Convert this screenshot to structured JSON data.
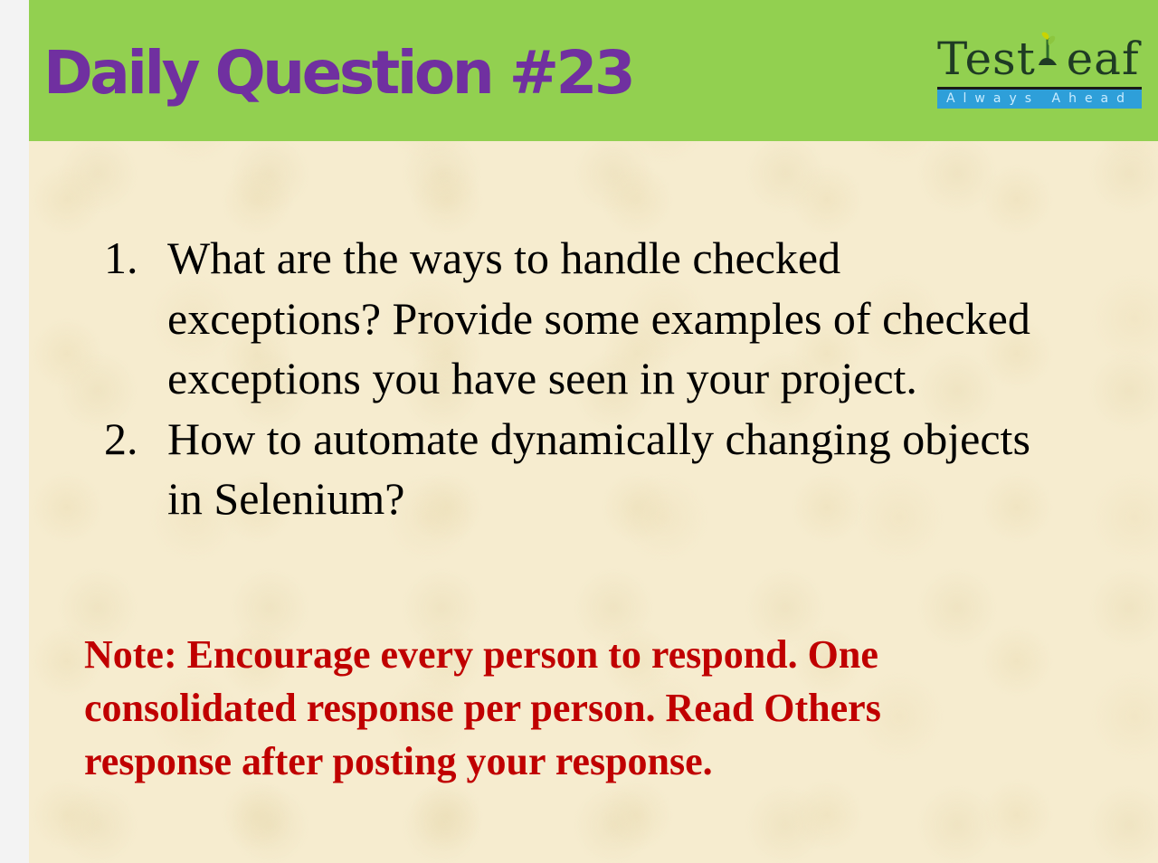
{
  "header": {
    "title": "Daily Question #23",
    "background": "#92d050",
    "title_color": "#7030a0"
  },
  "logo": {
    "name": "TestLeaf",
    "tagline": "Always Ahead",
    "bar_color": "#2e9fd9",
    "text_color": "#1f3b24"
  },
  "questions": [
    {
      "number": "1.",
      "text": "What are the ways to handle checked exceptions? Provide some examples of checked exceptions you have seen in your project."
    },
    {
      "number": "2.",
      "text": "How to automate dynamically changing objects in Selenium?"
    }
  ],
  "note": {
    "text": "Note: Encourage every person to respond. One consolidated response per person. Read Others response after posting your response.",
    "color": "#c00000"
  },
  "background": {
    "slide_color": "#f6eccf"
  }
}
